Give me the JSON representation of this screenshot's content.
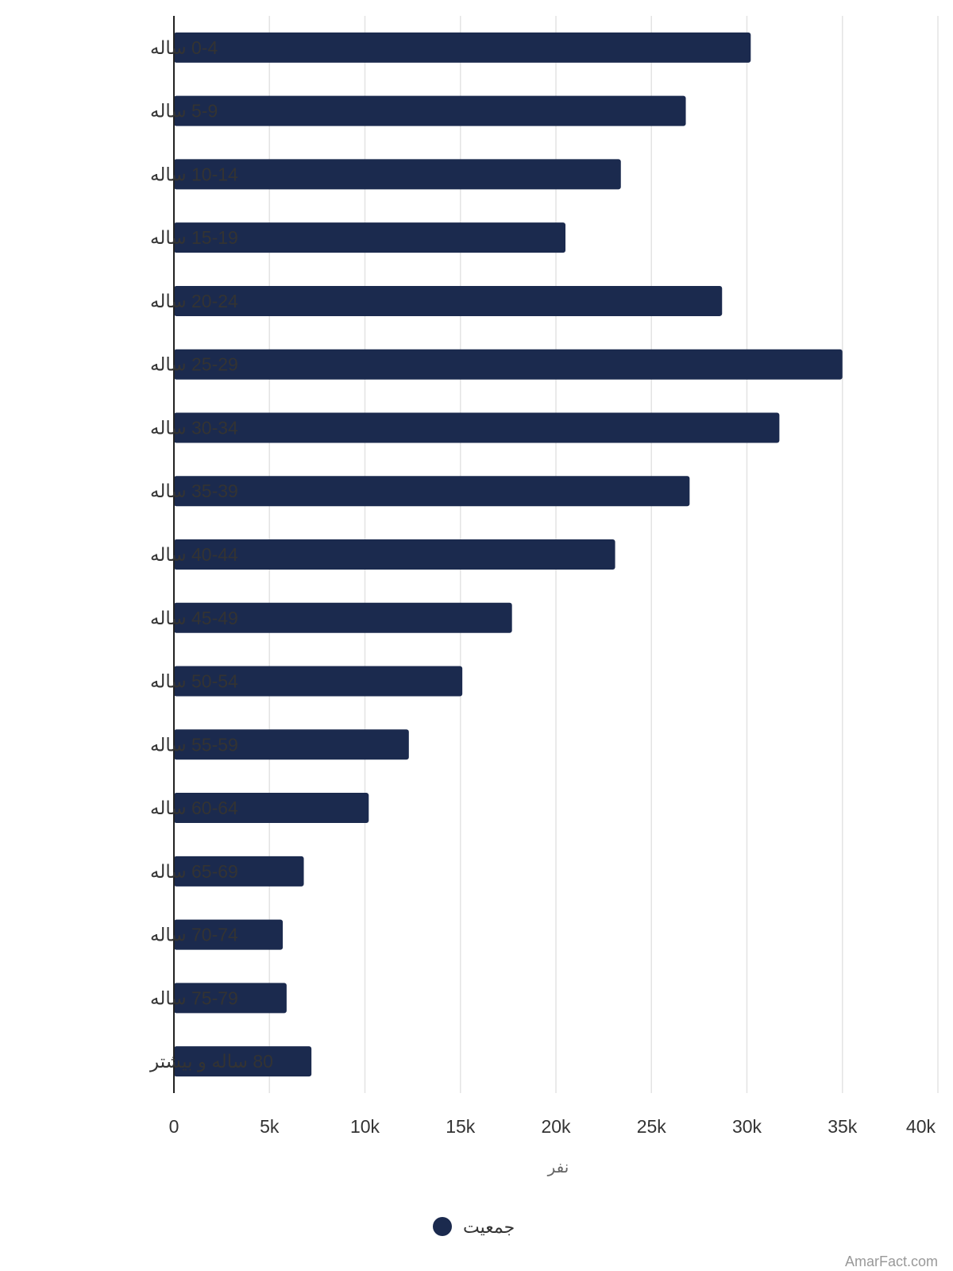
{
  "chart_data": {
    "type": "bar",
    "orientation": "horizontal",
    "categories": [
      "0-4 ساله",
      "5-9 ساله",
      "10-14 ساله",
      "15-19 ساله",
      "20-24 ساله",
      "25-29 ساله",
      "30-34 ساله",
      "35-39 ساله",
      "40-44 ساله",
      "45-49 ساله",
      "50-54 ساله",
      "55-59 ساله",
      "60-64 ساله",
      "65-69 ساله",
      "70-74 ساله",
      "75-79 ساله",
      "80 ساله و بیشتر"
    ],
    "series": [
      {
        "name": "جمعیت",
        "color": "#1b2a4e",
        "values": [
          30200,
          26800,
          23400,
          20500,
          28700,
          35000,
          31700,
          27000,
          23100,
          17700,
          15100,
          12300,
          10200,
          6800,
          5700,
          5900,
          7200
        ]
      }
    ],
    "xlim": [
      0,
      40000
    ],
    "xticks": [
      0,
      5000,
      10000,
      15000,
      20000,
      25000,
      30000,
      35000,
      40000
    ],
    "xtick_labels": [
      "0",
      "5k",
      "10k",
      "15k",
      "20k",
      "25k",
      "30k",
      "35k",
      "40k"
    ],
    "xlabel": "نفر",
    "grid": true,
    "legend_position": "bottom"
  },
  "watermark": "AmarFact.com"
}
